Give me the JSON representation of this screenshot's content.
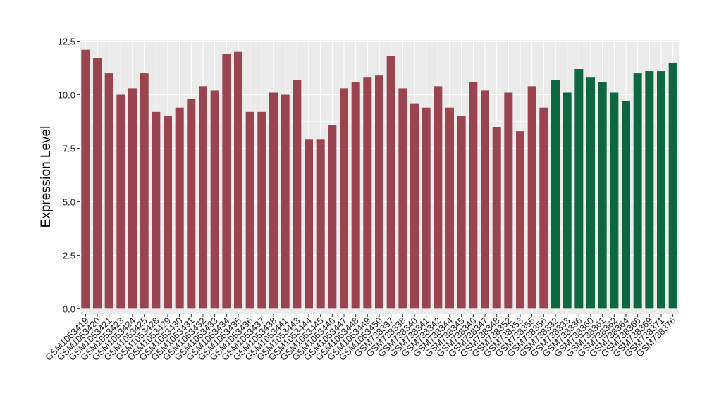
{
  "chart_data": {
    "type": "bar",
    "ylabel": "Expression Level",
    "ylim": [
      -0.25,
      12.55
    ],
    "yticks": [
      "0.0",
      "2.5",
      "5.0",
      "7.5",
      "10.0",
      "12.5"
    ],
    "ytick_values": [
      0,
      2.5,
      5,
      7.5,
      10,
      12.5
    ],
    "grid": true,
    "colors": {
      "group_a": "#9a4452",
      "group_b": "#0d6841",
      "panel": "#ebebeb",
      "grid": "#ffffff"
    },
    "categories": [
      "GSM1053419",
      "GSM1053420",
      "GSM1053421",
      "GSM1053423",
      "GSM1053424",
      "GSM1053425",
      "GSM1053428",
      "GSM1053429",
      "GSM1053430",
      "GSM1053431",
      "GSM1053432",
      "GSM1053433",
      "GSM1053434",
      "GSM1053435",
      "GSM1053436",
      "GSM1053437",
      "GSM1053438",
      "GSM1053441",
      "GSM1053443",
      "GSM1053444",
      "GSM1053445",
      "GSM1053446",
      "GSM1053447",
      "GSM1053448",
      "GSM1053449",
      "GSM1053450",
      "GSM738337",
      "GSM738338",
      "GSM738340",
      "GSM738341",
      "GSM738342",
      "GSM738344",
      "GSM738345",
      "GSM738346",
      "GSM738347",
      "GSM738348",
      "GSM738352",
      "GSM738353",
      "GSM738355",
      "GSM738356",
      "GSM738332",
      "GSM738333",
      "GSM738336",
      "GSM738360",
      "GSM738361",
      "GSM738362",
      "GSM738364",
      "GSM738366",
      "GSM738369",
      "GSM738371",
      "GSM738376"
    ],
    "values": [
      12.1,
      11.7,
      11.0,
      10.0,
      10.3,
      11.0,
      9.2,
      9.0,
      9.4,
      9.8,
      10.4,
      10.2,
      11.9,
      12.0,
      9.2,
      9.2,
      10.1,
      10.0,
      10.7,
      7.9,
      7.9,
      8.6,
      10.3,
      10.6,
      10.8,
      10.9,
      11.8,
      10.3,
      9.6,
      9.4,
      10.4,
      9.4,
      9.0,
      10.6,
      10.2,
      8.5,
      10.1,
      8.3,
      10.4,
      9.4,
      10.7,
      10.1,
      11.2,
      10.8,
      10.6,
      10.1,
      9.7,
      11.0,
      11.1,
      11.1,
      11.5
    ],
    "groups": [
      "a",
      "a",
      "a",
      "a",
      "a",
      "a",
      "a",
      "a",
      "a",
      "a",
      "a",
      "a",
      "a",
      "a",
      "a",
      "a",
      "a",
      "a",
      "a",
      "a",
      "a",
      "a",
      "a",
      "a",
      "a",
      "a",
      "a",
      "a",
      "a",
      "a",
      "a",
      "a",
      "a",
      "a",
      "a",
      "a",
      "a",
      "a",
      "a",
      "a",
      "b",
      "b",
      "b",
      "b",
      "b",
      "b",
      "b",
      "b",
      "b",
      "b",
      "b"
    ]
  }
}
